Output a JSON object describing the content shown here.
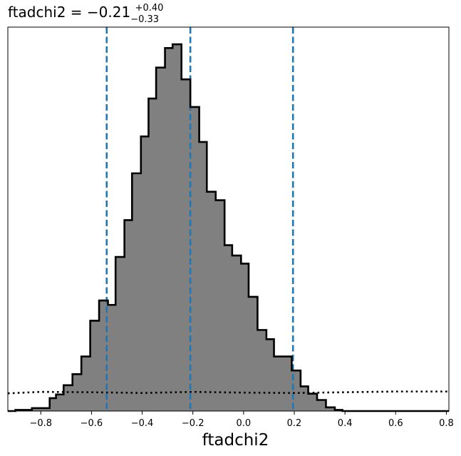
{
  "chart_data": {
    "type": "histogram",
    "title": {
      "prefix": "ftadchi2 = −0.21",
      "sup": "+0.40",
      "sub": "−0.33"
    },
    "xlabel": "ftadchi2",
    "ylabel": "",
    "xlim": [
      -0.93,
      0.81
    ],
    "ylim": [
      0,
      1.0
    ],
    "xticks": [
      -0.8,
      -0.6,
      -0.4,
      -0.2,
      0.0,
      0.2,
      0.4,
      0.6,
      0.8
    ],
    "xtick_labels": [
      "−0.8",
      "−0.6",
      "−0.4",
      "−0.2",
      "0.0",
      "0.2",
      "0.4",
      "0.6",
      "0.8"
    ],
    "y_ticks_shown": false,
    "grid": false,
    "legend": "none",
    "bin_edges": [
      -0.93,
      -0.9,
      -0.835,
      -0.765,
      -0.74,
      -0.71,
      -0.675,
      -0.64,
      -0.605,
      -0.57,
      -0.535,
      -0.505,
      -0.47,
      -0.44,
      -0.405,
      -0.375,
      -0.345,
      -0.31,
      -0.28,
      -0.245,
      -0.21,
      -0.175,
      -0.145,
      -0.11,
      -0.075,
      -0.045,
      -0.01,
      0.02,
      0.055,
      0.09,
      0.12,
      0.155,
      0.19,
      0.225,
      0.255,
      0.29,
      0.325,
      0.36,
      0.39,
      0.425,
      0.495,
      0.56,
      0.74,
      0.81
    ],
    "bin_heights": [
      0.0,
      0.003,
      0.008,
      0.035,
      0.045,
      0.07,
      0.1,
      0.148,
      0.245,
      0.3,
      0.288,
      0.418,
      0.518,
      0.645,
      0.745,
      0.848,
      0.932,
      0.985,
      0.995,
      0.9,
      0.825,
      0.73,
      0.595,
      0.572,
      0.45,
      0.422,
      0.4,
      0.31,
      0.22,
      0.195,
      0.148,
      0.148,
      0.11,
      0.067,
      0.047,
      0.03,
      0.01,
      0.003,
      0.0,
      0.0,
      0.0,
      0.0,
      0.0
    ],
    "fill_color": "#808080",
    "edge_color": "#000000",
    "dashed_vlines": [
      -0.54,
      -0.21,
      0.195
    ],
    "dashed_color": "#1f77b4",
    "dotted_line": {
      "x": [
        -0.93,
        -0.8,
        -0.6,
        -0.4,
        -0.2,
        0.0,
        0.2,
        0.4,
        0.6,
        0.81
      ],
      "y": [
        0.048,
        0.052,
        0.051,
        0.049,
        0.052,
        0.05,
        0.049,
        0.051,
        0.053,
        0.053
      ],
      "color": "#000000"
    }
  }
}
